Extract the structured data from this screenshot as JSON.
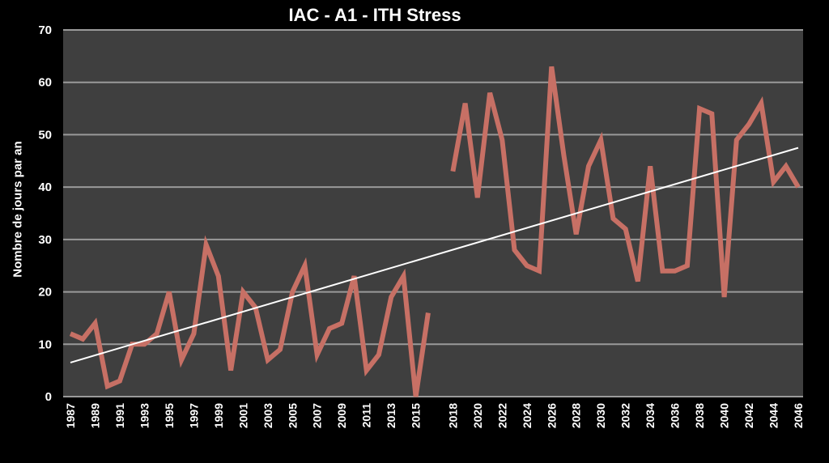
{
  "chart_data": {
    "type": "line",
    "title": "IAC - A1 - ITH Stress",
    "ylabel": "Nombre de jours par an",
    "xlabel": "",
    "ylim": [
      0,
      70
    ],
    "yticks": [
      0,
      10,
      20,
      30,
      40,
      50,
      60,
      70
    ],
    "xlim": [
      1987,
      2046
    ],
    "xticks": [
      1987,
      1989,
      1991,
      1993,
      1995,
      1997,
      1999,
      2001,
      2003,
      2005,
      2007,
      2009,
      2011,
      2013,
      2015,
      2018,
      2020,
      2022,
      2024,
      2026,
      2028,
      2030,
      2032,
      2034,
      2036,
      2038,
      2040,
      2042,
      2044,
      2046
    ],
    "grid": true,
    "colors": {
      "background": "#000000",
      "plot_area": "#3f3f3f",
      "series": "#c77065",
      "trend": "#ffffff",
      "grid": "#9a9a9a"
    },
    "series": [
      {
        "name": "",
        "segments": [
          {
            "x": [
              1987,
              1988,
              1989,
              1990,
              1991,
              1992,
              1993,
              1994,
              1995,
              1996,
              1997,
              1998,
              1999,
              2000,
              2001,
              2002,
              2003,
              2004,
              2005,
              2006,
              2007,
              2008,
              2009,
              2010,
              2011,
              2012,
              2013,
              2014,
              2015,
              2016
            ],
            "y": [
              12,
              11,
              14,
              2,
              3,
              10,
              10,
              12,
              20,
              7,
              12,
              29,
              23,
              5,
              20,
              17,
              7,
              9,
              20,
              25,
              8,
              13,
              14,
              23,
              5,
              8,
              19,
              23,
              0,
              16
            ]
          },
          {
            "x": [
              2018,
              2019,
              2020,
              2021,
              2022,
              2023,
              2024,
              2025,
              2026,
              2027,
              2028,
              2029,
              2030,
              2031,
              2032,
              2033,
              2034,
              2035,
              2036,
              2037,
              2038,
              2039,
              2040,
              2041,
              2042,
              2043,
              2044,
              2045,
              2046
            ],
            "y": [
              43,
              56,
              38,
              58,
              49,
              28,
              25,
              24,
              63,
              46,
              31,
              44,
              49,
              34,
              32,
              22,
              44,
              24,
              24,
              25,
              55,
              54,
              19,
              49,
              52,
              56,
              41,
              44,
              40
            ]
          }
        ]
      }
    ],
    "trend": {
      "x": [
        1987,
        2046
      ],
      "y": [
        6.5,
        47.5
      ]
    }
  }
}
